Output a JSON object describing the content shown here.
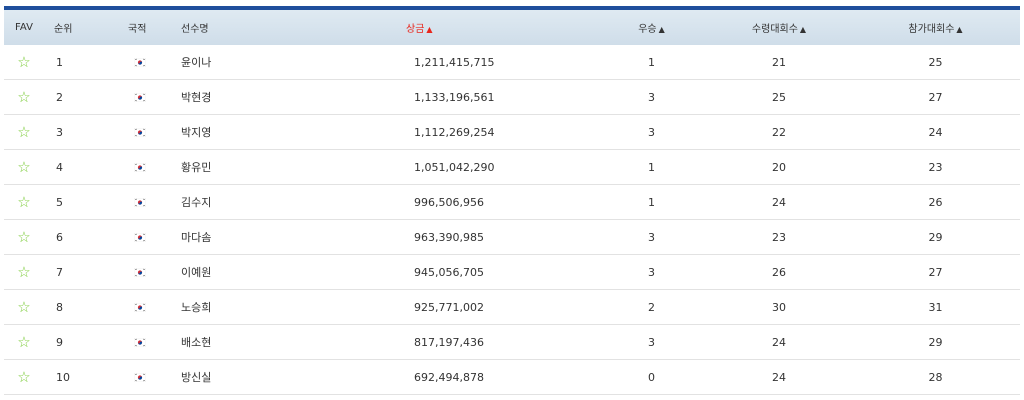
{
  "header": {
    "fav": "FAV",
    "rank": "순위",
    "nation": "국적",
    "player": "선수명",
    "prize": "상금",
    "wins": "우승",
    "top_finishes": "수령대회수",
    "events": "참가대회수",
    "sort_arrow": "▲"
  },
  "colors": {
    "accent_bar": "#1f4f9c",
    "sorted_header": "#e8261c",
    "fav_star": "#7ccc3a"
  },
  "icons": {
    "fav": "star-outline-icon",
    "nation": "korea-flag-icon"
  },
  "rows": [
    {
      "rank": "1",
      "name": "윤이나",
      "prize": "1,211,415,715",
      "wins": "1",
      "top_finishes": "21",
      "events": "25"
    },
    {
      "rank": "2",
      "name": "박현경",
      "prize": "1,133,196,561",
      "wins": "3",
      "top_finishes": "25",
      "events": "27"
    },
    {
      "rank": "3",
      "name": "박지영",
      "prize": "1,112,269,254",
      "wins": "3",
      "top_finishes": "22",
      "events": "24"
    },
    {
      "rank": "4",
      "name": "황유민",
      "prize": "1,051,042,290",
      "wins": "1",
      "top_finishes": "20",
      "events": "23"
    },
    {
      "rank": "5",
      "name": "김수지",
      "prize": "996,506,956",
      "wins": "1",
      "top_finishes": "24",
      "events": "26"
    },
    {
      "rank": "6",
      "name": "마다솜",
      "prize": "963,390,985",
      "wins": "3",
      "top_finishes": "23",
      "events": "29"
    },
    {
      "rank": "7",
      "name": "이예원",
      "prize": "945,056,705",
      "wins": "3",
      "top_finishes": "26",
      "events": "27"
    },
    {
      "rank": "8",
      "name": "노승희",
      "prize": "925,771,002",
      "wins": "2",
      "top_finishes": "30",
      "events": "31"
    },
    {
      "rank": "9",
      "name": "배소현",
      "prize": "817,197,436",
      "wins": "3",
      "top_finishes": "24",
      "events": "29"
    },
    {
      "rank": "10",
      "name": "방신실",
      "prize": "692,494,878",
      "wins": "0",
      "top_finishes": "24",
      "events": "28"
    }
  ]
}
